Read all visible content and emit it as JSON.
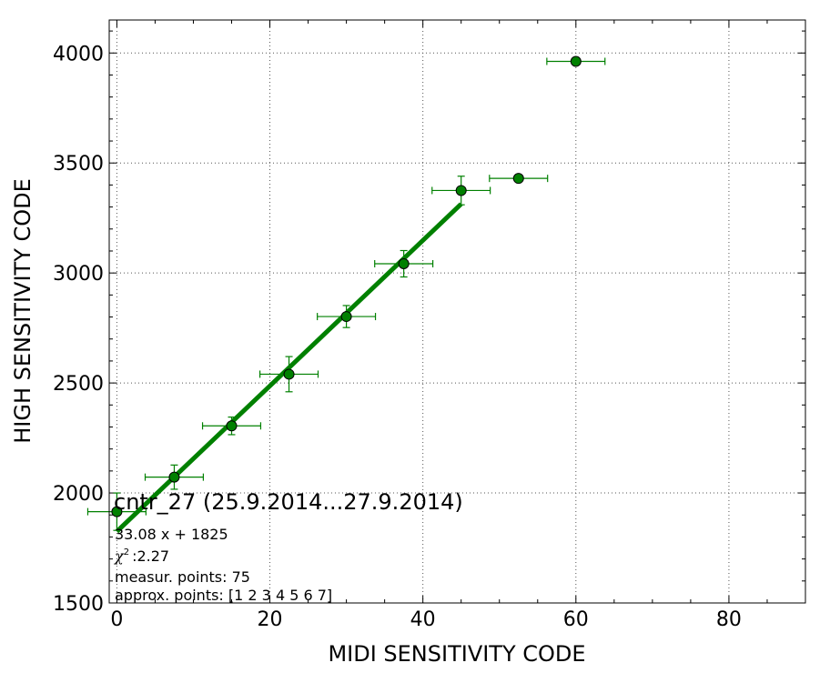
{
  "chart_data": {
    "type": "scatter",
    "xlabel": "MIDI SENSITIVITY CODE",
    "ylabel": "HIGH SENSITIVITY CODE",
    "xlim": [
      -1,
      90
    ],
    "ylim": [
      1500,
      4150
    ],
    "grid": true,
    "x_ticks": [
      0,
      20,
      40,
      60,
      80
    ],
    "y_ticks": [
      1500,
      2000,
      2500,
      3000,
      3500,
      4000
    ],
    "colors": {
      "points": "#008000",
      "fit": "#008000",
      "grid": "#555555"
    },
    "points": [
      {
        "x": 0,
        "y": 1915,
        "xerr": 3.8,
        "yerr": 85
      },
      {
        "x": 7.5,
        "y": 2072,
        "xerr": 3.8,
        "yerr": 55
      },
      {
        "x": 15,
        "y": 2305,
        "xerr": 3.8,
        "yerr": 40
      },
      {
        "x": 22.5,
        "y": 2540,
        "xerr": 3.8,
        "yerr": 80
      },
      {
        "x": 30,
        "y": 2802,
        "xerr": 3.8,
        "yerr": 50
      },
      {
        "x": 37.5,
        "y": 3042,
        "xerr": 3.8,
        "yerr": 60
      },
      {
        "x": 45,
        "y": 3375,
        "xerr": 3.8,
        "yerr": 65
      },
      {
        "x": 52.5,
        "y": 3430,
        "xerr": 3.8,
        "yerr": 0
      },
      {
        "x": 60,
        "y": 3962,
        "xerr": 3.8,
        "yerr": 0
      }
    ],
    "fit": {
      "slope": 33.08,
      "intercept": 1825,
      "x_range": [
        0,
        45
      ]
    },
    "annotation": {
      "title": "cntr_27 (25.9.2014...27.9.2014)",
      "equation": "33.08 x + 1825",
      "chi_symbol": "χ",
      "chi_sup": "2",
      "chi_value": ":2.27",
      "measur_points": "measur. points: 75",
      "approx_points": "approx. points: [1 2 3 4 5 6 7]"
    }
  }
}
